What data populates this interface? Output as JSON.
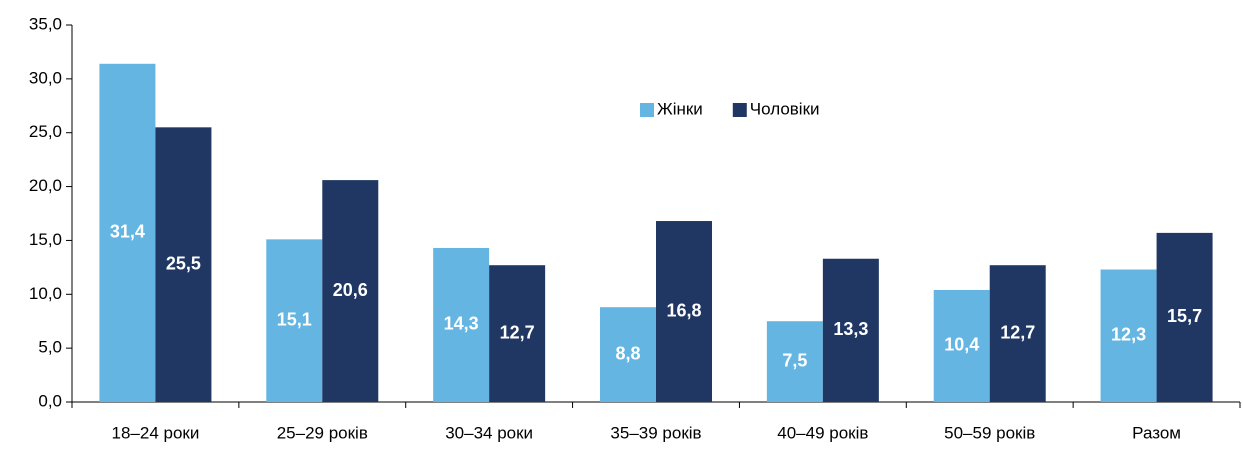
{
  "chart_data": {
    "type": "bar",
    "categories": [
      "18–24 роки",
      "25–29 років",
      "30–34 роки",
      "35–39 років",
      "40–49 років",
      "50–59 років",
      "Разом"
    ],
    "series": [
      {
        "name": "Жінки",
        "color": "#65b5e3",
        "values": [
          31.4,
          15.1,
          14.3,
          8.8,
          7.5,
          10.4,
          12.3
        ],
        "value_labels": [
          "31,4",
          "15,1",
          "14,3",
          "8,8",
          "7,5",
          "10,4",
          "12,3"
        ]
      },
      {
        "name": "Чоловіки",
        "color": "#203764",
        "values": [
          25.5,
          20.6,
          12.7,
          16.8,
          13.3,
          12.7,
          15.7
        ],
        "value_labels": [
          "25,5",
          "20,6",
          "12,7",
          "16,8",
          "13,3",
          "12,7",
          "15,7"
        ]
      }
    ],
    "ylim": [
      0,
      35
    ],
    "yticks": [
      {
        "value": 0,
        "label": "0,0"
      },
      {
        "value": 5,
        "label": "5,0"
      },
      {
        "value": 10,
        "label": "10,0"
      },
      {
        "value": 15,
        "label": "15,0"
      },
      {
        "value": 20,
        "label": "20,0"
      },
      {
        "value": 25,
        "label": "25,0"
      },
      {
        "value": 30,
        "label": "30,0"
      },
      {
        "value": 35,
        "label": "35,0"
      }
    ],
    "grid": false,
    "legend": "top-center"
  }
}
